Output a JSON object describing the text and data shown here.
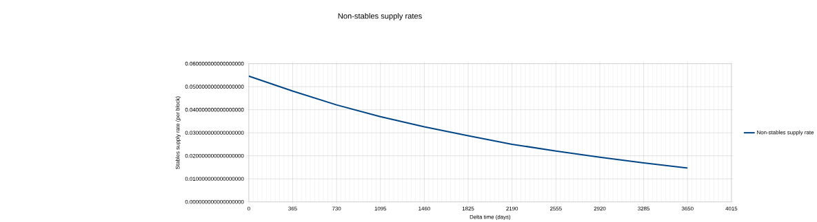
{
  "chart_data": {
    "type": "line",
    "title": "Non-stables supply rates",
    "xlabel": "Delta time (days)",
    "ylabel": "Stables supply rate (per block)",
    "x": [
      0,
      365,
      730,
      1095,
      1460,
      1825,
      2190,
      2555,
      2920,
      3285,
      3650
    ],
    "series": [
      {
        "name": "Non-stables supply rate",
        "color": "#004586",
        "values": [
          0.0546,
          0.0481,
          0.0421,
          0.037,
          0.0326,
          0.0287,
          0.025,
          0.0221,
          0.0194,
          0.0169,
          0.0147
        ]
      }
    ],
    "xlim": [
      0,
      4015
    ],
    "xticks": [
      0,
      365,
      730,
      1095,
      1460,
      1825,
      2190,
      2555,
      2920,
      3285,
      3650,
      4015
    ],
    "ylim": [
      0,
      0.06
    ],
    "yticks": [
      {
        "value": 0,
        "label": "0.000000000000000000"
      },
      {
        "value": 0.01,
        "label": "0.010000000000000000"
      },
      {
        "value": 0.02,
        "label": "0.020000000000000000"
      },
      {
        "value": 0.03,
        "label": "0.030000000000000000"
      },
      {
        "value": 0.04,
        "label": "0.040000000000000000"
      },
      {
        "value": 0.05,
        "label": "0.050000000000000000"
      },
      {
        "value": 0.06,
        "label": "0.060000000000000000"
      }
    ],
    "grid": true,
    "legend": "right",
    "marker": "none",
    "line_style": "solid"
  }
}
